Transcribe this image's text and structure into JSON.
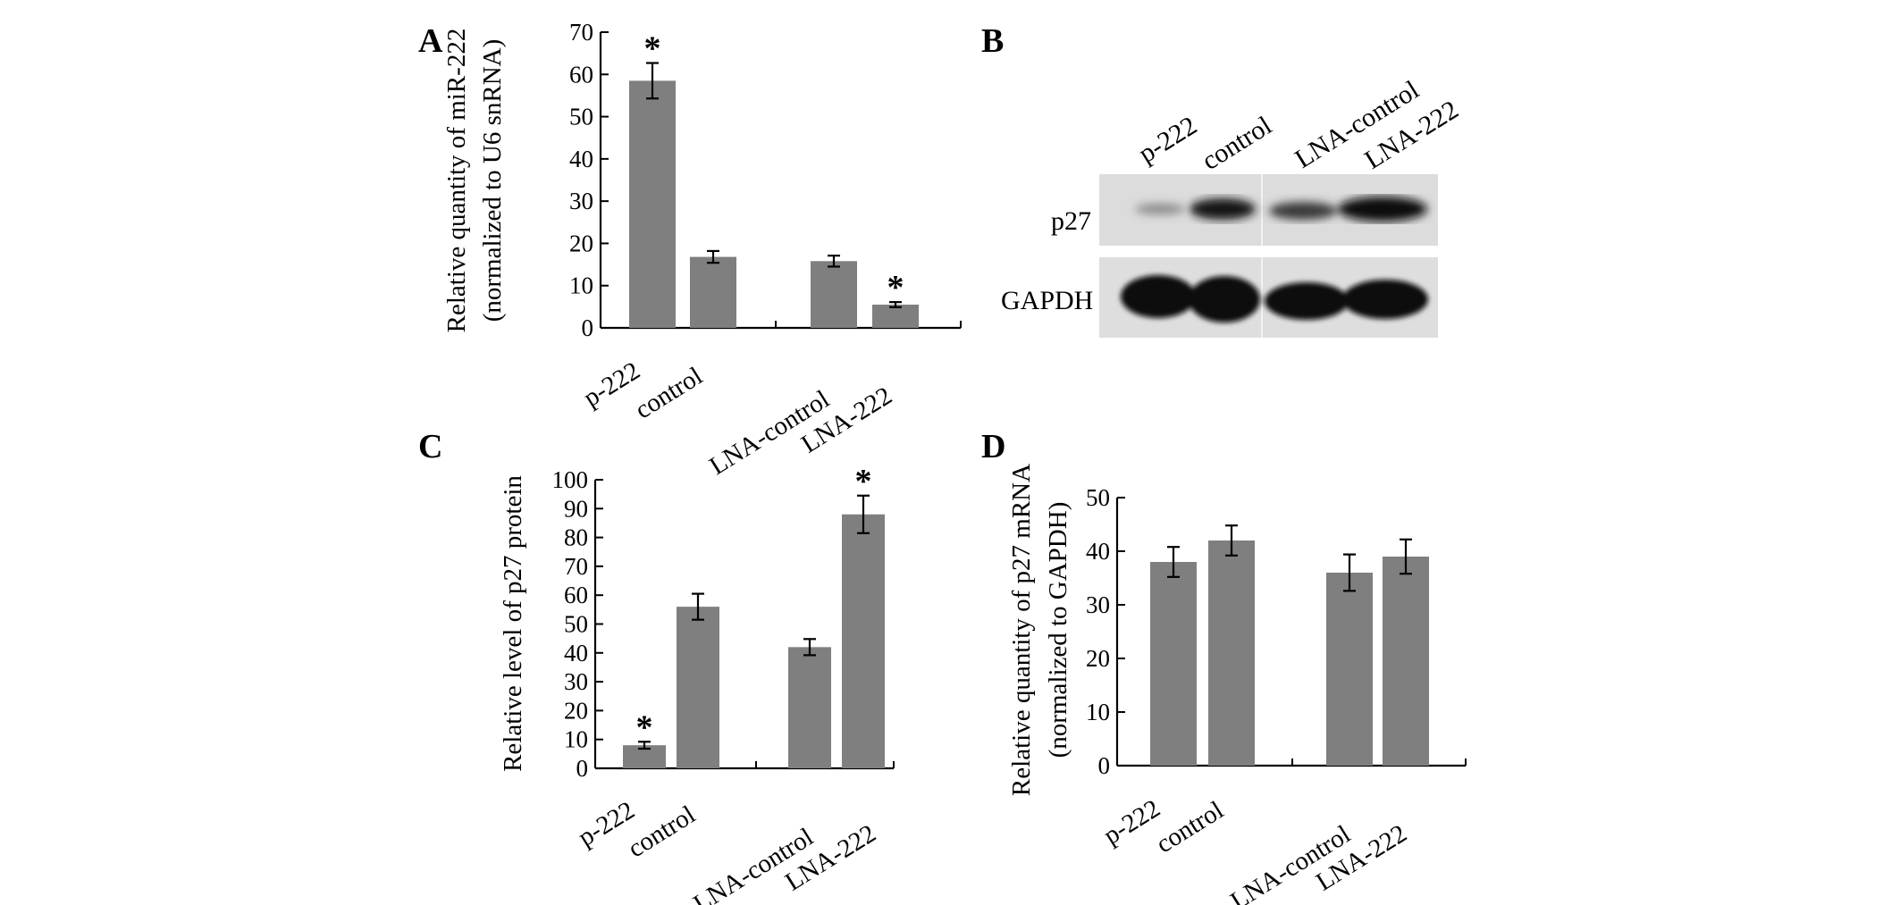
{
  "panels": {
    "A": "A",
    "B": "B",
    "C": "C",
    "D": "D"
  },
  "bar_color": "#7f7f7f",
  "chart_data": [
    {
      "id": "A",
      "type": "bar",
      "categories": [
        "p-222",
        "control",
        "LNA-control",
        "LNA-222"
      ],
      "values": [
        58.5,
        16.8,
        15.8,
        5.5
      ],
      "errors": [
        4.2,
        1.4,
        1.3,
        0.6
      ],
      "significant": [
        true,
        false,
        false,
        true
      ],
      "ylabel": [
        "Relative quantity of miR-222",
        "(normalized to U6 snRNA)"
      ],
      "ylim": [
        0,
        70
      ],
      "yticks": [
        0,
        10,
        20,
        30,
        40,
        50,
        60,
        70
      ]
    },
    {
      "id": "C",
      "type": "bar",
      "categories": [
        "p-222",
        "control",
        "LNA-control",
        "LNA-222"
      ],
      "values": [
        8,
        56,
        42,
        88
      ],
      "errors": [
        1.2,
        4.5,
        2.8,
        6.5
      ],
      "significant": [
        true,
        false,
        false,
        true
      ],
      "ylabel": [
        "Relative level of p27 protein"
      ],
      "ylim": [
        0,
        100
      ],
      "yticks": [
        0,
        10,
        20,
        30,
        40,
        50,
        60,
        70,
        80,
        90,
        100
      ]
    },
    {
      "id": "D",
      "type": "bar",
      "categories": [
        "p-222",
        "control",
        "LNA-control",
        "LNA-222"
      ],
      "values": [
        38,
        42,
        36,
        39
      ],
      "errors": [
        2.8,
        2.8,
        3.4,
        3.2
      ],
      "significant": [
        false,
        false,
        false,
        false
      ],
      "ylabel": [
        "Relative quantity of p27 mRNA",
        "(normalized to GAPDH)"
      ],
      "ylim": [
        0,
        50
      ],
      "yticks": [
        0,
        10,
        20,
        30,
        40,
        50
      ]
    }
  ],
  "star_symbol": "*",
  "blot": {
    "lanes": [
      "p-222",
      "control",
      "LNA-control",
      "LNA-222"
    ],
    "rows": [
      "p27",
      "GAPDH"
    ]
  }
}
